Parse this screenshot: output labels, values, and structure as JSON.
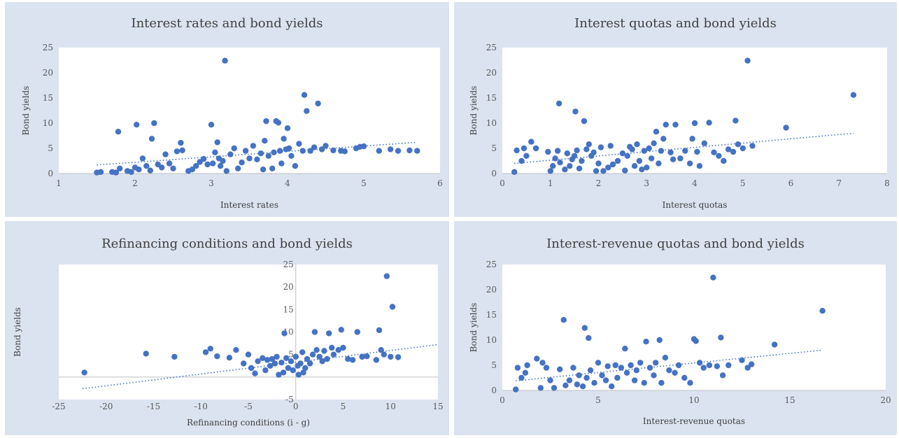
{
  "chart_data": [
    {
      "type": "scatter",
      "title": "Interest rates and bond yields",
      "xlabel": "Interest rates",
      "ylabel": "Bond yields",
      "xlim": [
        1,
        6
      ],
      "ylim": [
        0,
        25
      ],
      "xticks": [
        1,
        2,
        3,
        4,
        5,
        6
      ],
      "yticks": [
        0,
        5,
        10,
        15,
        20,
        25
      ],
      "grid": false,
      "trendline": {
        "style": "dotted",
        "x": [
          1.5,
          5.7
        ],
        "y": [
          1.7,
          6.2
        ]
      },
      "points": [
        [
          1.5,
          0.2
        ],
        [
          1.55,
          0.3
        ],
        [
          1.7,
          0.3
        ],
        [
          1.75,
          0.2
        ],
        [
          1.8,
          1.0
        ],
        [
          1.78,
          8.3
        ],
        [
          1.9,
          0.5
        ],
        [
          1.95,
          0.3
        ],
        [
          2.0,
          1.2
        ],
        [
          2.05,
          0.8
        ],
        [
          2.02,
          9.7
        ],
        [
          2.1,
          3.0
        ],
        [
          2.15,
          1.5
        ],
        [
          2.2,
          0.6
        ],
        [
          2.22,
          6.9
        ],
        [
          2.25,
          10.0
        ],
        [
          2.3,
          1.8
        ],
        [
          2.35,
          1.2
        ],
        [
          2.4,
          3.8
        ],
        [
          2.45,
          2.0
        ],
        [
          2.5,
          1.0
        ],
        [
          2.55,
          4.4
        ],
        [
          2.6,
          6.1
        ],
        [
          2.62,
          4.6
        ],
        [
          2.7,
          0.5
        ],
        [
          2.75,
          0.8
        ],
        [
          2.8,
          1.5
        ],
        [
          2.85,
          2.3
        ],
        [
          2.9,
          2.9
        ],
        [
          2.95,
          1.8
        ],
        [
          3.0,
          9.7
        ],
        [
          3.02,
          2.0
        ],
        [
          3.05,
          4.2
        ],
        [
          3.08,
          6.2
        ],
        [
          3.1,
          3.0
        ],
        [
          3.12,
          1.5
        ],
        [
          3.15,
          2.5
        ],
        [
          3.18,
          22.4
        ],
        [
          3.2,
          0.5
        ],
        [
          3.25,
          3.8
        ],
        [
          3.3,
          5.0
        ],
        [
          3.35,
          1.0
        ],
        [
          3.4,
          2.2
        ],
        [
          3.45,
          4.5
        ],
        [
          3.5,
          3.0
        ],
        [
          3.55,
          5.5
        ],
        [
          3.6,
          2.8
        ],
        [
          3.65,
          4.0
        ],
        [
          3.68,
          0.8
        ],
        [
          3.7,
          6.5
        ],
        [
          3.72,
          10.4
        ],
        [
          3.75,
          3.5
        ],
        [
          3.8,
          1.0
        ],
        [
          3.82,
          4.2
        ],
        [
          3.85,
          10.4
        ],
        [
          3.88,
          10.1
        ],
        [
          3.9,
          4.5
        ],
        [
          3.92,
          2.0
        ],
        [
          3.95,
          6.9
        ],
        [
          3.98,
          4.8
        ],
        [
          4.0,
          9.0
        ],
        [
          4.02,
          5.0
        ],
        [
          4.05,
          3.5
        ],
        [
          4.1,
          1.5
        ],
        [
          4.15,
          5.9
        ],
        [
          4.2,
          4.5
        ],
        [
          4.22,
          15.6
        ],
        [
          4.25,
          12.4
        ],
        [
          4.3,
          4.5
        ],
        [
          4.35,
          5.2
        ],
        [
          4.4,
          13.9
        ],
        [
          4.45,
          4.8
        ],
        [
          4.5,
          5.5
        ],
        [
          4.6,
          4.6
        ],
        [
          4.7,
          4.5
        ],
        [
          4.75,
          4.4
        ],
        [
          4.9,
          5.0
        ],
        [
          4.95,
          5.3
        ],
        [
          5.0,
          5.4
        ],
        [
          5.2,
          4.5
        ],
        [
          5.35,
          4.8
        ],
        [
          5.45,
          4.5
        ],
        [
          5.6,
          4.6
        ],
        [
          5.7,
          4.5
        ]
      ]
    },
    {
      "type": "scatter",
      "title": "Interest quotas and bond yields",
      "xlabel": "Interest  quotas",
      "ylabel": "Bond yields",
      "xlim": [
        0,
        8
      ],
      "ylim": [
        0,
        25
      ],
      "xticks": [
        0,
        1,
        2,
        3,
        4,
        5,
        6,
        7,
        8
      ],
      "yticks": [
        0,
        5,
        10,
        15,
        20,
        25
      ],
      "grid": false,
      "trendline": {
        "style": "dotted",
        "x": [
          0.25,
          7.3
        ],
        "y": [
          2.0,
          8.0
        ]
      },
      "points": [
        [
          0.25,
          0.3
        ],
        [
          0.3,
          4.6
        ],
        [
          0.4,
          2.5
        ],
        [
          0.45,
          5.0
        ],
        [
          0.5,
          3.5
        ],
        [
          0.6,
          6.3
        ],
        [
          0.7,
          5.0
        ],
        [
          0.95,
          4.3
        ],
        [
          1.0,
          0.5
        ],
        [
          1.05,
          1.5
        ],
        [
          1.1,
          3.0
        ],
        [
          1.15,
          4.5
        ],
        [
          1.18,
          13.9
        ],
        [
          1.2,
          2.2
        ],
        [
          1.3,
          0.8
        ],
        [
          1.35,
          4.0
        ],
        [
          1.4,
          1.5
        ],
        [
          1.45,
          2.8
        ],
        [
          1.5,
          3.5
        ],
        [
          1.52,
          12.3
        ],
        [
          1.55,
          4.6
        ],
        [
          1.6,
          1.0
        ],
        [
          1.65,
          2.5
        ],
        [
          1.7,
          10.4
        ],
        [
          1.75,
          4.8
        ],
        [
          1.8,
          5.8
        ],
        [
          1.85,
          3.5
        ],
        [
          1.9,
          4.2
        ],
        [
          1.95,
          0.5
        ],
        [
          2.0,
          2.0
        ],
        [
          2.05,
          5.2
        ],
        [
          2.1,
          0.5
        ],
        [
          2.2,
          1.2
        ],
        [
          2.25,
          5.5
        ],
        [
          2.3,
          1.8
        ],
        [
          2.4,
          2.5
        ],
        [
          2.5,
          4.0
        ],
        [
          2.55,
          0.6
        ],
        [
          2.6,
          3.5
        ],
        [
          2.65,
          5.3
        ],
        [
          2.7,
          4.8
        ],
        [
          2.75,
          1.5
        ],
        [
          2.8,
          5.8
        ],
        [
          2.85,
          2.5
        ],
        [
          2.9,
          0.8
        ],
        [
          2.95,
          4.5
        ],
        [
          3.0,
          1.2
        ],
        [
          3.05,
          5.0
        ],
        [
          3.1,
          3.0
        ],
        [
          3.15,
          6.0
        ],
        [
          3.2,
          8.3
        ],
        [
          3.25,
          2.0
        ],
        [
          3.3,
          4.5
        ],
        [
          3.35,
          6.9
        ],
        [
          3.4,
          9.7
        ],
        [
          3.5,
          4.2
        ],
        [
          3.55,
          2.8
        ],
        [
          3.6,
          9.7
        ],
        [
          3.7,
          3.0
        ],
        [
          3.8,
          4.5
        ],
        [
          3.9,
          2.0
        ],
        [
          3.95,
          6.9
        ],
        [
          4.0,
          10.0
        ],
        [
          4.05,
          4.3
        ],
        [
          4.1,
          1.5
        ],
        [
          4.2,
          6.0
        ],
        [
          4.3,
          10.1
        ],
        [
          4.4,
          4.2
        ],
        [
          4.5,
          3.5
        ],
        [
          4.6,
          2.5
        ],
        [
          4.7,
          4.8
        ],
        [
          4.8,
          4.3
        ],
        [
          4.85,
          10.5
        ],
        [
          4.9,
          5.8
        ],
        [
          5.0,
          5.0
        ],
        [
          5.1,
          22.4
        ],
        [
          5.2,
          5.5
        ],
        [
          5.9,
          9.1
        ],
        [
          7.3,
          15.6
        ]
      ]
    },
    {
      "type": "scatter",
      "title": "Refinancing conditions and bond yields",
      "xlabel": "Refinancing  conditions  (i - g)",
      "ylabel": "Bond yields",
      "xlim": [
        -25,
        15
      ],
      "ylim": [
        -5,
        25
      ],
      "xticks": [
        -25,
        -20,
        -15,
        -10,
        -5,
        0,
        5,
        10,
        15
      ],
      "yticks": [
        -5,
        5,
        10,
        15,
        20,
        25
      ],
      "grid": false,
      "trendline": {
        "style": "dotted",
        "x": [
          -22.5,
          15
        ],
        "y": [
          -2.6,
          7.2
        ]
      },
      "points": [
        [
          -22.3,
          1.0
        ],
        [
          -15.8,
          5.2
        ],
        [
          -12.8,
          4.5
        ],
        [
          -9.5,
          5.5
        ],
        [
          -9.0,
          6.3
        ],
        [
          -8.3,
          4.6
        ],
        [
          -7.0,
          4.3
        ],
        [
          -6.3,
          6.0
        ],
        [
          -5.5,
          3.0
        ],
        [
          -5.0,
          5.0
        ],
        [
          -4.7,
          2.0
        ],
        [
          -4.3,
          0.8
        ],
        [
          -4.0,
          3.5
        ],
        [
          -3.5,
          4.2
        ],
        [
          -3.2,
          1.5
        ],
        [
          -3.0,
          3.8
        ],
        [
          -2.7,
          2.5
        ],
        [
          -2.5,
          4.0
        ],
        [
          -2.2,
          3.0
        ],
        [
          -2.0,
          4.5
        ],
        [
          -1.8,
          0.5
        ],
        [
          -1.5,
          3.2
        ],
        [
          -1.3,
          1.0
        ],
        [
          -1.2,
          9.7
        ],
        [
          -1.0,
          4.2
        ],
        [
          -0.8,
          2.0
        ],
        [
          -0.5,
          3.5
        ],
        [
          -0.3,
          1.5
        ],
        [
          0.0,
          4.5
        ],
        [
          0.2,
          2.5
        ],
        [
          0.3,
          0.5
        ],
        [
          0.5,
          3.0
        ],
        [
          0.7,
          5.5
        ],
        [
          0.8,
          1.0
        ],
        [
          1.0,
          2.0
        ],
        [
          1.2,
          4.0
        ],
        [
          1.5,
          3.0
        ],
        [
          1.8,
          5.0
        ],
        [
          2.0,
          10.0
        ],
        [
          2.2,
          6.0
        ],
        [
          2.5,
          4.5
        ],
        [
          2.8,
          3.5
        ],
        [
          3.0,
          5.8
        ],
        [
          3.3,
          4.0
        ],
        [
          3.5,
          9.7
        ],
        [
          3.8,
          6.5
        ],
        [
          4.0,
          5.0
        ],
        [
          4.5,
          6.0
        ],
        [
          4.8,
          10.5
        ],
        [
          5.0,
          6.5
        ],
        [
          5.5,
          4.0
        ],
        [
          6.0,
          3.8
        ],
        [
          6.5,
          10.0
        ],
        [
          7.0,
          4.5
        ],
        [
          7.5,
          4.6
        ],
        [
          8.5,
          3.8
        ],
        [
          8.8,
          10.4
        ],
        [
          9.0,
          6.0
        ],
        [
          9.3,
          5.0
        ],
        [
          9.6,
          22.4
        ],
        [
          10.0,
          4.5
        ],
        [
          10.2,
          15.6
        ],
        [
          10.8,
          4.4
        ]
      ]
    },
    {
      "type": "scatter",
      "title": "Interest-revenue quotas and bond yields",
      "xlabel": "Interest-revenue  quotas",
      "ylabel": "Bond yields",
      "xlim": [
        0,
        20
      ],
      "ylim": [
        0,
        25
      ],
      "xticks": [
        0,
        5,
        10,
        15,
        20
      ],
      "yticks": [
        0,
        5,
        10,
        15,
        20,
        25
      ],
      "grid": false,
      "trendline": {
        "style": "dotted",
        "x": [
          0.7,
          16.7
        ],
        "y": [
          1.9,
          8.0
        ]
      },
      "points": [
        [
          0.7,
          0.2
        ],
        [
          0.8,
          4.5
        ],
        [
          1.0,
          2.5
        ],
        [
          1.2,
          3.5
        ],
        [
          1.3,
          5.0
        ],
        [
          1.8,
          6.3
        ],
        [
          2.0,
          0.5
        ],
        [
          2.1,
          5.5
        ],
        [
          2.3,
          4.5
        ],
        [
          2.5,
          2.0
        ],
        [
          2.7,
          0.5
        ],
        [
          3.0,
          4.2
        ],
        [
          3.2,
          14.0
        ],
        [
          3.3,
          1.0
        ],
        [
          3.5,
          2.0
        ],
        [
          3.7,
          4.5
        ],
        [
          3.9,
          1.2
        ],
        [
          4.0,
          3.0
        ],
        [
          4.2,
          0.8
        ],
        [
          4.3,
          12.4
        ],
        [
          4.4,
          2.5
        ],
        [
          4.5,
          10.4
        ],
        [
          4.6,
          4.0
        ],
        [
          4.8,
          1.5
        ],
        [
          5.0,
          5.5
        ],
        [
          5.2,
          3.0
        ],
        [
          5.4,
          2.0
        ],
        [
          5.5,
          4.8
        ],
        [
          5.7,
          0.8
        ],
        [
          5.9,
          5.0
        ],
        [
          6.0,
          2.5
        ],
        [
          6.2,
          4.5
        ],
        [
          6.4,
          8.3
        ],
        [
          6.5,
          3.5
        ],
        [
          6.7,
          5.0
        ],
        [
          6.9,
          2.0
        ],
        [
          7.0,
          4.0
        ],
        [
          7.2,
          5.5
        ],
        [
          7.4,
          1.5
        ],
        [
          7.5,
          9.7
        ],
        [
          7.7,
          4.5
        ],
        [
          7.9,
          3.0
        ],
        [
          8.0,
          5.5
        ],
        [
          8.2,
          10.0
        ],
        [
          8.3,
          1.5
        ],
        [
          8.5,
          6.5
        ],
        [
          8.7,
          4.0
        ],
        [
          9.0,
          3.5
        ],
        [
          9.2,
          5.0
        ],
        [
          9.5,
          2.5
        ],
        [
          9.8,
          1.5
        ],
        [
          10.0,
          10.2
        ],
        [
          10.1,
          9.8
        ],
        [
          10.3,
          5.5
        ],
        [
          10.5,
          4.5
        ],
        [
          10.8,
          5.0
        ],
        [
          11.0,
          22.4
        ],
        [
          11.2,
          4.8
        ],
        [
          11.4,
          10.5
        ],
        [
          11.5,
          3.0
        ],
        [
          11.8,
          5.0
        ],
        [
          12.5,
          6.0
        ],
        [
          12.8,
          4.5
        ],
        [
          13.0,
          5.2
        ],
        [
          14.2,
          9.1
        ],
        [
          16.7,
          15.8
        ]
      ]
    }
  ]
}
